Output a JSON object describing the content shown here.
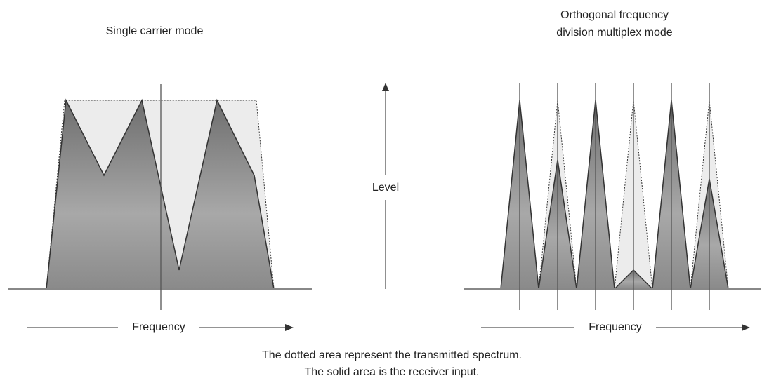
{
  "left_panel": {
    "title": "Single carrier mode",
    "axis_label": "Frequency"
  },
  "center": {
    "axis_label": "Level"
  },
  "right_panel": {
    "title_lines": [
      "Orthogonal frequency",
      "division multiplex mode"
    ],
    "axis_label": "Frequency"
  },
  "caption": [
    "The dotted area represent the transmitted spectrum.",
    "The solid area is the receiver input."
  ]
}
